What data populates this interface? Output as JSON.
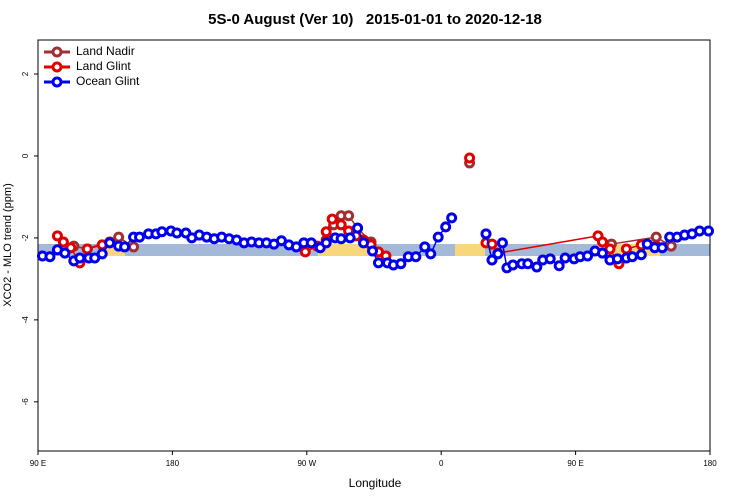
{
  "chart_data": {
    "type": "line",
    "title": "5S-0 August (Ver 10)   2015-01-01 to 2020-12-18",
    "x_label": "Longitude",
    "y_label": "XCO2 - MLO trend (ppm)",
    "xlim": [
      90,
      540
    ],
    "ylim": [
      -7.2,
      2.83
    ],
    "xticks": [
      {
        "value": 90,
        "label": "90 E"
      },
      180,
      {
        "value": 270,
        "label": "90 W"
      },
      {
        "value": 360,
        "label": "0"
      },
      {
        "value": 450,
        "label": "90 E"
      },
      {
        "value": 540,
        "label": "180"
      }
    ],
    "yticks": [
      2,
      0,
      -2,
      -4,
      -6
    ],
    "legend": "top-left",
    "series": [
      {
        "name": "Land Nadir",
        "color": "#a0302f",
        "x": [
          114,
          123,
          144,
          154,
          220,
          288,
          293,
          298,
          304,
          313,
          350,
          379,
          420,
          474,
          504,
          514
        ],
        "values": [
          -2.2,
          -2.27,
          -1.98,
          -2.22,
          null,
          -1.68,
          -1.46,
          -1.46,
          -1.76,
          -2.1,
          null,
          -0.17,
          null,
          -2.15,
          -1.98,
          -2.2
        ]
      },
      {
        "name": "Land Glint",
        "color": "#e00000",
        "x": [
          103,
          107,
          112,
          118,
          123,
          133,
          138,
          200,
          269,
          277,
          283,
          283,
          287,
          293,
          298,
          303,
          308,
          313,
          318,
          323,
          350,
          379,
          385,
          390,
          394,
          398,
          465,
          468,
          473,
          479,
          484,
          494,
          504
        ],
        "values": [
          -1.95,
          -2.1,
          -2.24,
          -2.61,
          -2.27,
          -2.17,
          -2.1,
          null,
          -2.34,
          -2.2,
          -2.05,
          -1.85,
          -1.54,
          -1.68,
          -1.83,
          -1.95,
          -2.05,
          -2.17,
          -2.34,
          -2.44,
          null,
          -0.05,
          null,
          -2.12,
          -2.15,
          -2.37,
          -1.95,
          -2.1,
          -2.27,
          -2.63,
          -2.27,
          -2.17,
          -2.2
        ]
      },
      {
        "name": "Ocean Glint",
        "color": "#0000ee",
        "x": [
          93,
          98,
          103,
          108,
          114,
          118,
          124,
          128,
          133,
          138,
          144,
          148,
          154,
          158,
          164,
          169,
          173,
          179,
          183,
          189,
          193,
          198,
          203,
          208,
          213,
          218,
          223,
          228,
          233,
          238,
          243,
          248,
          253,
          258,
          263,
          268,
          273,
          279,
          283,
          289,
          293,
          299,
          304,
          308,
          314,
          318,
          324,
          328,
          333,
          338,
          343,
          349,
          353,
          358,
          363,
          367,
          375,
          390,
          394,
          398,
          401,
          404,
          408,
          414,
          418,
          424,
          428,
          433,
          439,
          443,
          449,
          453,
          458,
          463,
          468,
          473,
          478,
          484,
          488,
          494,
          498,
          503,
          508,
          513,
          518,
          523,
          528,
          533,
          539
        ],
        "values": [
          -2.44,
          -2.46,
          -2.29,
          -2.37,
          -2.56,
          -2.49,
          -2.49,
          -2.49,
          -2.39,
          -2.12,
          -2.2,
          -2.22,
          -1.98,
          -1.98,
          -1.9,
          -1.9,
          -1.85,
          -1.83,
          -1.88,
          -1.88,
          -2.0,
          -1.93,
          -1.98,
          -2.02,
          -1.98,
          -2.02,
          -2.05,
          -2.12,
          -2.1,
          -2.12,
          -2.12,
          -2.15,
          -2.07,
          -2.17,
          -2.22,
          -2.12,
          -2.12,
          -2.24,
          -2.12,
          -2.0,
          -2.02,
          -2.0,
          -1.76,
          -2.12,
          -2.32,
          -2.61,
          -2.61,
          -2.66,
          -2.63,
          -2.46,
          -2.46,
          -2.22,
          -2.39,
          -1.98,
          -1.73,
          -1.51,
          null,
          -1.9,
          -2.54,
          -2.39,
          -2.12,
          -2.73,
          -2.66,
          -2.63,
          -2.63,
          -2.71,
          -2.54,
          -2.51,
          -2.68,
          -2.49,
          -2.51,
          -2.46,
          -2.44,
          -2.32,
          -2.37,
          -2.54,
          -2.51,
          -2.49,
          -2.46,
          -2.41,
          -2.15,
          -2.24,
          -2.24,
          -1.98,
          -1.98,
          -1.93,
          -1.9,
          -1.83,
          -1.83
        ]
      }
    ]
  }
}
